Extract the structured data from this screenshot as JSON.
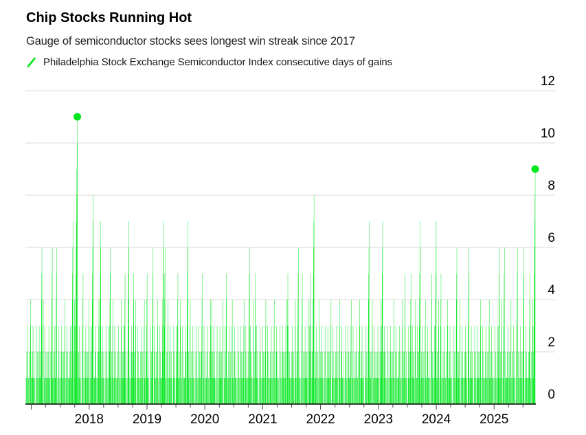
{
  "header": {
    "title": "Chip Stocks Running Hot",
    "subtitle": "Gauge of semiconductor stocks sees longest win streak since 2017"
  },
  "legend": {
    "label": "Philadelphia Stock Exchange Semiconductor Index consecutive days of gains",
    "marker_color": "#00E61C"
  },
  "chart_data": {
    "type": "bar",
    "title": "Chip Stocks Running Hot",
    "subtitle": "Gauge of semiconductor stocks sees longest win streak since 2017",
    "series_name": "Philadelphia Stock Exchange Semiconductor Index consecutive days of gains",
    "xlabel": "",
    "ylabel": "consecutive days of gains",
    "x_start_year": 2016.91,
    "x_end_year": 2025.71,
    "trading_days_per_year": 252,
    "x_ticks": [
      2018,
      2019,
      2020,
      2021,
      2022,
      2023,
      2024,
      2025
    ],
    "y_ticks": [
      0,
      2,
      4,
      6,
      8,
      10,
      12
    ],
    "ylim": [
      0,
      12
    ],
    "grid": true,
    "legend_position": "top-left",
    "colors": {
      "bar": "#00E61C",
      "grid": "#D8D8D8",
      "axis": "#000000",
      "tick": "#444444",
      "text": "#000000"
    },
    "notable_streaks": [
      {
        "date": 2017.17,
        "days": 6
      },
      {
        "date": 2017.35,
        "days": 6
      },
      {
        "date": 2017.42,
        "days": 6
      },
      {
        "date": 2017.7,
        "days": 7
      },
      {
        "date": 2017.76,
        "days": 11,
        "marker": true
      },
      {
        "date": 2017.88,
        "days": 5
      },
      {
        "date": 2018.05,
        "days": 8
      },
      {
        "date": 2018.18,
        "days": 7
      },
      {
        "date": 2018.35,
        "days": 6
      },
      {
        "date": 2018.61,
        "days": 5
      },
      {
        "date": 2018.68,
        "days": 7
      },
      {
        "date": 2018.76,
        "days": 5
      },
      {
        "date": 2019.0,
        "days": 5
      },
      {
        "date": 2019.1,
        "days": 6
      },
      {
        "date": 2019.26,
        "days": 7
      },
      {
        "date": 2019.31,
        "days": 6
      },
      {
        "date": 2019.52,
        "days": 5
      },
      {
        "date": 2019.69,
        "days": 7
      },
      {
        "date": 2019.96,
        "days": 5
      },
      {
        "date": 2020.12,
        "days": 4
      },
      {
        "date": 2020.36,
        "days": 5
      },
      {
        "date": 2020.76,
        "days": 6
      },
      {
        "date": 2020.86,
        "days": 5
      },
      {
        "date": 2021.42,
        "days": 5
      },
      {
        "date": 2021.6,
        "days": 6
      },
      {
        "date": 2021.67,
        "days": 5
      },
      {
        "date": 2021.81,
        "days": 5
      },
      {
        "date": 2021.86,
        "days": 8
      },
      {
        "date": 2022.83,
        "days": 7
      },
      {
        "date": 2023.06,
        "days": 7
      },
      {
        "date": 2023.45,
        "days": 5
      },
      {
        "date": 2023.55,
        "days": 5
      },
      {
        "date": 2023.7,
        "days": 7
      },
      {
        "date": 2023.92,
        "days": 5
      },
      {
        "date": 2023.98,
        "days": 7
      },
      {
        "date": 2024.08,
        "days": 5
      },
      {
        "date": 2024.35,
        "days": 6
      },
      {
        "date": 2024.55,
        "days": 6
      },
      {
        "date": 2025.08,
        "days": 6
      },
      {
        "date": 2025.17,
        "days": 6
      },
      {
        "date": 2025.39,
        "days": 6
      },
      {
        "date": 2025.52,
        "days": 6
      },
      {
        "date": 2025.62,
        "days": 5
      },
      {
        "date": 2025.68,
        "days": 5
      }
    ],
    "final_streak": {
      "date": 2025.71,
      "days": 9,
      "marker": true
    },
    "background_runs_pattern": [
      [
        1,
        1
      ],
      [
        2,
        1
      ],
      [
        3,
        2
      ],
      [
        1,
        1
      ],
      [
        2,
        3
      ],
      [
        4,
        1
      ],
      [
        1,
        2
      ],
      [
        2,
        1
      ],
      [
        3,
        1
      ],
      [
        1,
        1
      ],
      [
        2,
        2
      ],
      [
        1,
        4
      ],
      [
        3,
        2
      ],
      [
        2,
        1
      ],
      [
        1,
        3
      ],
      [
        3,
        1
      ],
      [
        2,
        1
      ],
      [
        1,
        1
      ],
      [
        2,
        2
      ],
      [
        4,
        3
      ],
      [
        1,
        1
      ],
      [
        3,
        2
      ],
      [
        2,
        1
      ],
      [
        1,
        2
      ]
    ]
  }
}
